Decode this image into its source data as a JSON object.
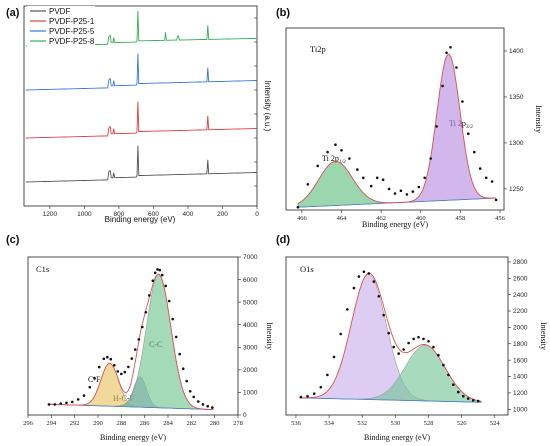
{
  "panels": {
    "a": {
      "letter": "(a)",
      "xlabel": "Binding energy (eV)",
      "ylabel": "Intensity (a.u.)"
    },
    "b": {
      "letter": "(b)",
      "name": "Ti2p",
      "xlabel": "Binding energy (eV)",
      "ylabel": "Intensity"
    },
    "c": {
      "letter": "(c)",
      "name": "C1s",
      "xlabel": "Binding energy (eV)",
      "ylabel": "Intensity"
    },
    "d": {
      "letter": "(d)",
      "name": "O1s",
      "xlabel": "Binding energy (eV)",
      "ylabel": "Intensity"
    }
  },
  "chart_data": [
    {
      "id": "a",
      "type": "line",
      "xlabel": "Binding energy (eV)",
      "ylabel": "Intensity (a.u.)",
      "xlim": [
        1350,
        0
      ],
      "x_ticks": [
        1200,
        1000,
        800,
        600,
        400,
        200,
        0
      ],
      "legend_position": "top-left",
      "series": [
        {
          "name": "PVDF",
          "color": "#555555",
          "baseline": 0.12,
          "step": 0.05
        },
        {
          "name": "PVDF-P25-1",
          "color": "#e04040",
          "baseline": 0.34,
          "step": 0.05
        },
        {
          "name": "PVDF-P25-5",
          "color": "#3a78d6",
          "baseline": 0.58,
          "step": 0.05
        },
        {
          "name": "PVDF-P25-8",
          "color": "#38b050",
          "baseline": 0.8,
          "step": 0.04
        }
      ],
      "peaks_ev": [
        855,
        830,
        690,
        530,
        458,
        285
      ]
    },
    {
      "id": "b",
      "type": "line",
      "title": "Ti2p",
      "xlabel": "Binding energy (eV)",
      "ylabel": "Intensity",
      "xlim": [
        466.8,
        455.8
      ],
      "ylim": [
        1227,
        1425
      ],
      "x_ticks": [
        466,
        464,
        462,
        460,
        458,
        456
      ],
      "y_ticks": [
        1250,
        1300,
        1350,
        1400
      ],
      "components": [
        {
          "label": "Ti 2p1/2",
          "center": 464.3,
          "height": 48,
          "sigma": 0.85,
          "color": "#5cbf7c"
        },
        {
          "label": "Ti 2p3/2",
          "center": 458.6,
          "height": 159,
          "sigma": 0.58,
          "color": "#b78be0"
        }
      ],
      "background": {
        "x": [
          466.2,
          456.2
        ],
        "y": [
          1230,
          1240
        ]
      },
      "experimental": {
        "x": [
          466.2,
          465.7,
          465.2,
          464.7,
          464.3,
          464.0,
          463.6,
          463.2,
          462.9,
          462.5,
          462.2,
          461.9,
          461.6,
          461.3,
          461.0,
          460.7,
          460.4,
          460.1,
          459.8,
          459.5,
          459.2,
          458.9,
          458.7,
          458.5,
          458.2,
          457.9,
          457.6,
          457.3,
          457.0,
          456.7,
          456.4,
          456.2
        ],
        "y": [
          1230,
          1255,
          1275,
          1290,
          1298,
          1292,
          1283,
          1271,
          1262,
          1253,
          1262,
          1260,
          1250,
          1245,
          1248,
          1244,
          1247,
          1252,
          1262,
          1283,
          1318,
          1362,
          1398,
          1404,
          1382,
          1345,
          1310,
          1290,
          1272,
          1262,
          1258,
          1238
        ]
      }
    },
    {
      "id": "c",
      "type": "line",
      "title": "C1s",
      "xlabel": "Binding energy (eV)",
      "ylabel": "Intensity",
      "xlim": [
        296,
        278
      ],
      "ylim": [
        0,
        7000
      ],
      "x_ticks": [
        296,
        294,
        292,
        290,
        288,
        286,
        284,
        282,
        280,
        278
      ],
      "y_ticks": [
        0,
        1000,
        2000,
        3000,
        4000,
        5000,
        6000,
        7000
      ],
      "components": [
        {
          "label": "C-F",
          "center": 289.0,
          "height": 1900,
          "sigma": 0.75,
          "color": "#e6c25e"
        },
        {
          "label": "H-C-F",
          "center": 286.4,
          "height": 1350,
          "sigma": 0.55,
          "color": "#a88dd6"
        },
        {
          "label": "C-C",
          "center": 284.8,
          "height": 5900,
          "sigma": 1.05,
          "color": "#6cc48c"
        }
      ],
      "background": {
        "x": [
          294.3,
          280.1
        ],
        "y": [
          480,
          240
        ]
      },
      "experimental": {
        "x": [
          294.2,
          293.7,
          293.2,
          292.7,
          292.2,
          291.7,
          291.2,
          290.7,
          290.3,
          289.9,
          289.5,
          289.2,
          288.9,
          288.6,
          288.3,
          288.0,
          287.7,
          287.4,
          287.1,
          286.8,
          286.5,
          286.2,
          285.9,
          285.6,
          285.3,
          285.1,
          284.9,
          284.7,
          284.5,
          284.2,
          283.9,
          283.6,
          283.3,
          283.0,
          282.7,
          282.4,
          282.1,
          281.8,
          281.4,
          281.0,
          280.6,
          280.2
        ],
        "y": [
          470,
          470,
          510,
          540,
          580,
          690,
          860,
          1230,
          1640,
          2120,
          2490,
          2560,
          2470,
          2200,
          1930,
          1820,
          1900,
          2130,
          2500,
          2900,
          3350,
          3900,
          4550,
          5300,
          5950,
          6300,
          6450,
          6420,
          6200,
          5720,
          5050,
          4250,
          3460,
          2700,
          2050,
          1500,
          1050,
          800,
          600,
          470,
          390,
          330
        ]
      }
    },
    {
      "id": "d",
      "type": "line",
      "title": "O1s",
      "xlabel": "Binding energy (eV)",
      "ylabel": "Intensity",
      "xlim": [
        536.6,
        523.2
      ],
      "ylim": [
        930,
        2860
      ],
      "x_ticks": [
        536,
        534,
        532,
        530,
        528,
        526,
        524
      ],
      "y_ticks": [
        1000,
        1200,
        1400,
        1600,
        1800,
        2000,
        2200,
        2400,
        2600,
        2800
      ],
      "components": [
        {
          "label": "",
          "center": 531.6,
          "height": 1530,
          "sigma": 1.05,
          "color": "#c9aeea"
        },
        {
          "label": "",
          "center": 528.2,
          "height": 680,
          "sigma": 1.2,
          "color": "#72c394"
        }
      ],
      "background": {
        "x": [
          535.8,
          524.8
        ],
        "y": [
          1140,
          1085
        ]
      },
      "experimental": {
        "x": [
          535.7,
          535.3,
          534.9,
          534.5,
          534.1,
          533.7,
          533.3,
          532.9,
          532.5,
          532.2,
          531.9,
          531.6,
          531.3,
          531.0,
          530.7,
          530.4,
          530.1,
          529.8,
          529.5,
          529.2,
          528.9,
          528.6,
          528.3,
          528.0,
          527.7,
          527.4,
          527.1,
          526.8,
          526.5,
          526.2,
          525.9,
          525.6,
          525.3,
          525.0
        ],
        "y": [
          1150,
          1160,
          1190,
          1270,
          1420,
          1640,
          1920,
          2220,
          2480,
          2620,
          2680,
          2660,
          2560,
          2380,
          2150,
          1930,
          1760,
          1680,
          1730,
          1810,
          1860,
          1880,
          1860,
          1830,
          1760,
          1660,
          1540,
          1420,
          1300,
          1210,
          1160,
          1130,
          1110,
          1100
        ]
      }
    }
  ]
}
